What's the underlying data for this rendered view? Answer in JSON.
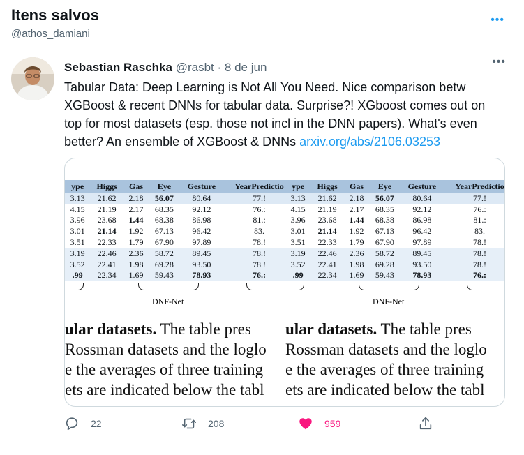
{
  "header": {
    "title": "Itens salvos",
    "handle": "@athos_damiani"
  },
  "tweet": {
    "author_name": "Sebastian Raschka",
    "author_handle": "@rasbt",
    "separator": "·",
    "date": "8 de jun",
    "text": "Tabular Data: Deep Learning is Not All You Need. Nice comparison betw XGBoost & recent DNNs for tabular data. Surprise?! XGboost comes out on top for most datasets (esp. those not incl in the DNN papers). What's even better? An ensemble of XGBoost & DNNs ",
    "link": "arxiv.org/abs/2106.03253"
  },
  "media": {
    "columns": [
      "ype",
      "Higgs",
      "Gas",
      "Eye",
      "Gesture",
      "YearPredictio"
    ],
    "rows": [
      [
        "3.13",
        "21.62",
        "2.18",
        "56.07",
        "80.64",
        "77.!"
      ],
      [
        "4.15",
        "21.19",
        "2.17",
        "68.35",
        "92.12",
        "76.:"
      ],
      [
        "3.96",
        "23.68",
        "1.44",
        "68.38",
        "86.98",
        "81.:"
      ],
      [
        "3.01",
        "21.14",
        "1.92",
        "67.13",
        "96.42",
        "83."
      ],
      [
        "3.51",
        "22.33",
        "1.79",
        "67.90",
        "97.89",
        "78.!"
      ],
      [
        "3.19",
        "22.46",
        "2.36",
        "58.72",
        "89.45",
        "78.!"
      ],
      [
        "3.52",
        "22.41",
        "1.98",
        "69.28",
        "93.50",
        "78.!"
      ],
      [
        ".99",
        "22.34",
        "1.69",
        "59.43",
        "78.93",
        "76.:"
      ]
    ],
    "caption": "DNF-Net",
    "text_lines": [
      {
        "bold": "ular datasets.",
        "rest": " The table pres"
      },
      {
        "bold": "",
        "rest": " Rossman datasets and the loglo"
      },
      {
        "bold": "",
        "rest": "e the averages of three training"
      },
      {
        "bold": "",
        "rest": "ets are indicated below the tabl"
      }
    ]
  },
  "actions": {
    "reply_count": "22",
    "retweet_count": "208",
    "like_count": "959"
  },
  "colors": {
    "accent": "#1d9bf0",
    "like": "#f91880",
    "muted": "#536471"
  }
}
